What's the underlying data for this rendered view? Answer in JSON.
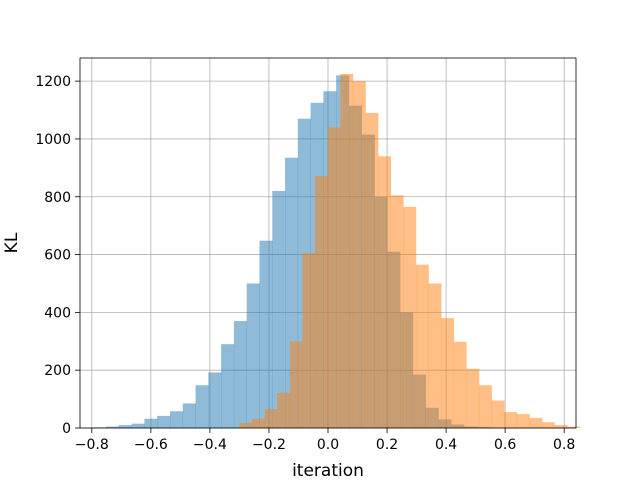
{
  "chart_data": {
    "type": "bar",
    "title": "",
    "xlabel": "iteration",
    "ylabel": "KL",
    "xlim": [
      -0.84,
      0.84
    ],
    "ylim": [
      0,
      1280
    ],
    "grid": true,
    "xticks": [
      -0.8,
      -0.6,
      -0.4,
      -0.2,
      0.0,
      0.2,
      0.4,
      0.6,
      0.8
    ],
    "xtick_labels": [
      "−0.8",
      "−0.6",
      "−0.4",
      "−0.2",
      "0.0",
      "0.2",
      "0.4",
      "0.6",
      "0.8"
    ],
    "yticks": [
      0,
      200,
      400,
      600,
      800,
      1000,
      1200
    ],
    "ytick_labels": [
      "0",
      "200",
      "400",
      "600",
      "800",
      "1000",
      "1200"
    ],
    "series": [
      {
        "color": "#1f77b4",
        "opacity": 0.5,
        "bin_start": -0.795,
        "bin_width": 0.0433,
        "values": [
          2,
          5,
          10,
          15,
          32,
          42,
          58,
          85,
          148,
          192,
          290,
          370,
          500,
          648,
          820,
          935,
          1070,
          1125,
          1165,
          1220,
          1115,
          1015,
          800,
          610,
          400,
          185,
          70,
          30,
          12,
          5,
          3,
          1
        ]
      },
      {
        "color": "#ff7f0e",
        "opacity": 0.5,
        "bin_start": -0.3,
        "bin_width": 0.0427,
        "values": [
          18,
          32,
          65,
          122,
          300,
          605,
          872,
          1040,
          1225,
          1200,
          1090,
          940,
          805,
          765,
          565,
          500,
          380,
          298,
          205,
          148,
          95,
          55,
          48,
          35,
          20,
          10,
          5
        ]
      }
    ]
  }
}
